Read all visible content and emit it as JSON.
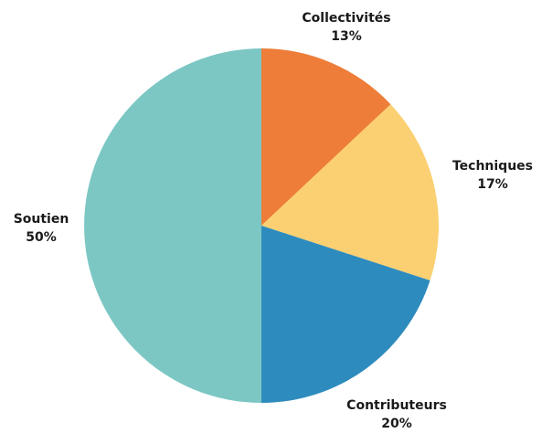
{
  "chart_data": {
    "type": "pie",
    "title": "",
    "start_angle_deg": 0,
    "direction": "clockwise",
    "slices": [
      {
        "label": "Collectivités",
        "value": 13,
        "value_label": "13%",
        "color": "#ed7d38"
      },
      {
        "label": "Techniques",
        "value": 17,
        "value_label": "17%",
        "color": "#fbd072"
      },
      {
        "label": "Contributeurs",
        "value": 20,
        "value_label": "20%",
        "color": "#2e8bbd"
      },
      {
        "label": "Soutien",
        "value": 50,
        "value_label": "50%",
        "color": "#7cc7c4"
      }
    ]
  }
}
